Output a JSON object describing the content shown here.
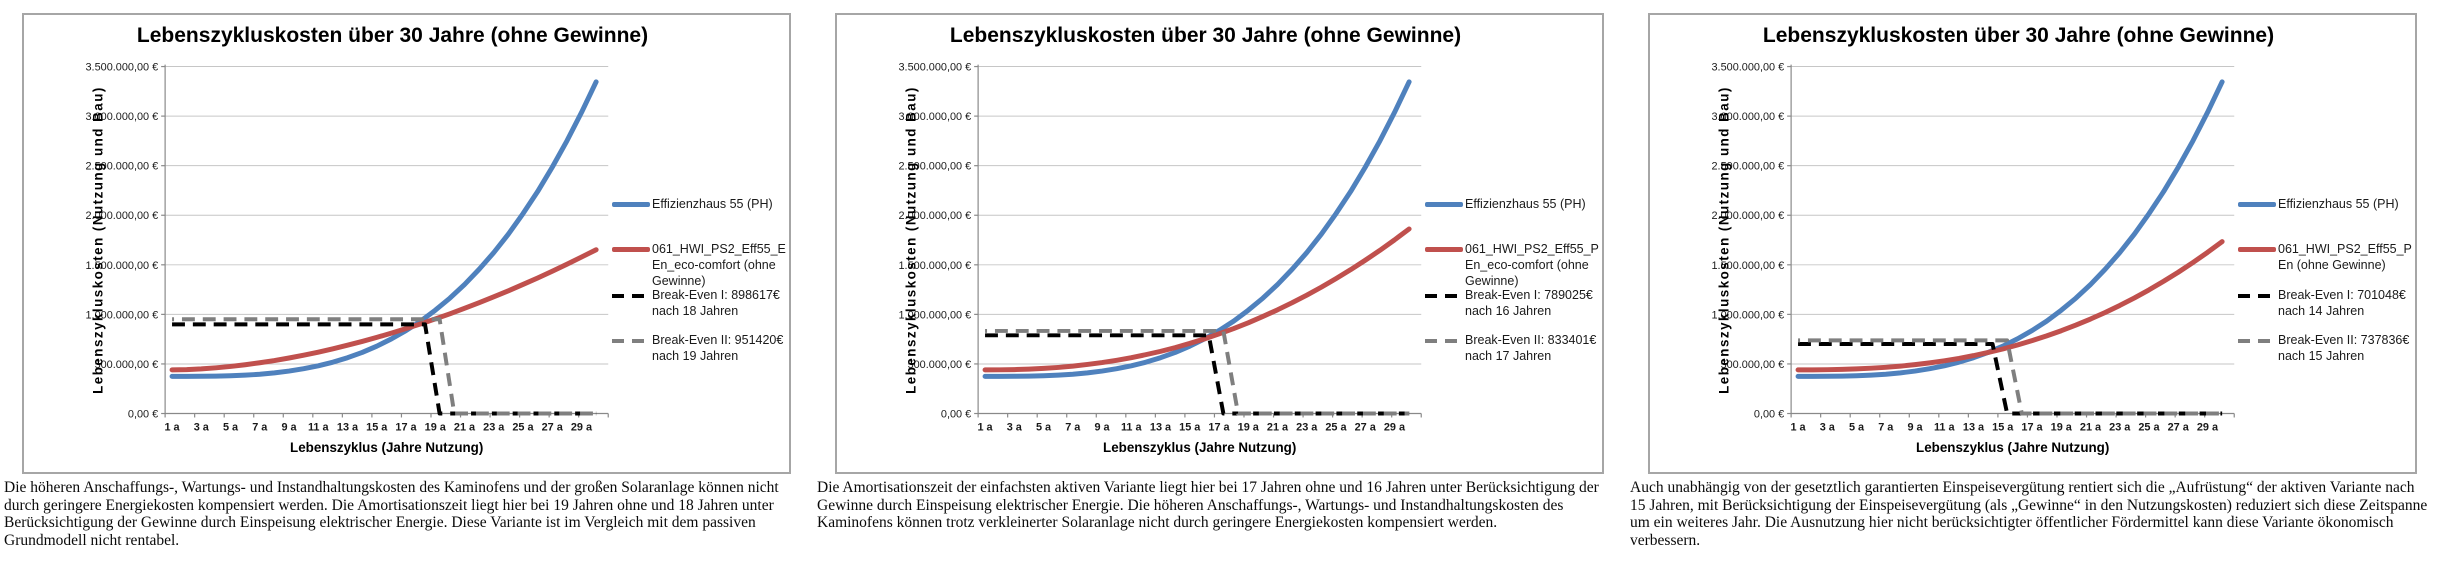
{
  "captions": [
    "Die höheren Anschaffungs-, Wartungs- und Instandhaltungskosten des Kaminofens und der großen Solaranlage können nicht durch geringere Energiekosten kompensiert werden. Die Amortisationszeit liegt hier bei 19 Jahren ohne und 18 Jahren unter Berücksichtigung der Gewinne durch Einspeisung elektrischer Energie. Diese Variante ist im Vergleich mit dem passiven Grundmodell nicht rentabel.",
    "Die Amortisationszeit der einfachsten aktiven Variante liegt hier bei 17 Jahren ohne und 16 Jahren unter Berücksichtigung der Gewinne durch Einspeisung elektrischer Energie. Die höheren Anschaffungs-, Wartungs- und Instandhaltungskosten des Kaminofens können trotz verkleinerter Solaranlage nicht durch geringere Energiekosten kompensiert werden.",
    "Auch unabhängig von der gesetztlich garantierten Einspeisevergütung rentiert sich die „Aufrüstung“ der aktiven Variante nach 15 Jahren, mit Berücksichtigung der Einspeisevergütung (als „Gewinne“ in den Nutzungskosten) reduziert sich diese Zeitspanne um ein weiteres Jahr. Die Ausnutzung hier nicht berücksichtigter öffentlicher Fördermittel kann diese Variante ökonomisch verbessern."
  ],
  "chart_data": [
    {
      "type": "line",
      "title": "Lebenszykluskosten über 30 Jahre (ohne Gewinne)",
      "xlabel": "Lebenszyklus (Jahre Nutzung)",
      "ylabel": "Lebenszykluskosten (Nutzung und Bau)",
      "ylim": [
        0,
        3500000
      ],
      "y_tick_labels": [
        "0,00 €",
        "500.000,00 €",
        "1.000.000,00 €",
        "1.500.000,00 €",
        "2.000.000,00 €",
        "2.500.000,00 €",
        "3.000.000,00 €",
        "3.500.000,00 €"
      ],
      "x_tick_labels": [
        "1 a",
        "3 a",
        "5 a",
        "7 a",
        "9 a",
        "11 a",
        "13 a",
        "15 a",
        "17 a",
        "19 a",
        "21 a",
        "23 a",
        "25 a",
        "27 a",
        "29 a"
      ],
      "x_years": 30,
      "legend_position": "right",
      "grid": true,
      "series": [
        {
          "id": "efficiency-house-line",
          "name": "Effizienzhaus 55 (PH)",
          "color": "#4F81BD",
          "width": 5,
          "values": [
            375000,
            375000,
            376000,
            377000,
            381000,
            387000,
            396000,
            410000,
            428000,
            452000,
            481000,
            518000,
            563000,
            616000,
            679000,
            753000,
            837000,
            932000,
            1042000,
            1164000,
            1301000,
            1455000,
            1623000,
            1810000,
            2016000,
            2239000,
            2484000,
            2750000,
            3036000,
            3346000
          ]
        },
        {
          "id": "variant-line",
          "name": "061_HWI_PS2_Eff55_EEn_eco-comfort (ohne Gewinne)",
          "color": "#C0504D",
          "width": 5,
          "values": [
            440000,
            443000,
            450000,
            461000,
            475000,
            492000,
            512000,
            534000,
            560000,
            588000,
            619000,
            653000,
            689000,
            727000,
            768000,
            811000,
            857000,
            904000,
            954000,
            1006000,
            1061000,
            1118000,
            1177000,
            1238000,
            1302000,
            1367000,
            1435000,
            1506000,
            1578000,
            1652000
          ]
        },
        {
          "id": "break-even-1-line",
          "name": "Break-Even I: 898617€ nach 18 Jahren",
          "color": "#000000",
          "width": 4,
          "dash": "13 8",
          "value": 898617,
          "drop_year": 18
        },
        {
          "id": "break-even-2-line",
          "name": "Break-Even II: 951420€ nach 19 Jahren",
          "color": "#7f7f7f",
          "width": 4,
          "dash": "13 8",
          "dashoffset": 11,
          "value": 951420,
          "drop_year": 19
        }
      ]
    },
    {
      "type": "line",
      "title": "Lebenszykluskosten über 30 Jahre (ohne Gewinne)",
      "xlabel": "Lebenszyklus (Jahre Nutzung)",
      "ylabel": "Lebenszykluskosten (Nutzung und Bau)",
      "ylim": [
        0,
        3500000
      ],
      "y_tick_labels": [
        "0,00 €",
        "500.000,00 €",
        "1.000.000,00 €",
        "1.500.000,00 €",
        "2.000.000,00 €",
        "2.500.000,00 €",
        "3.000.000,00 €",
        "3.500.000,00 €"
      ],
      "x_tick_labels": [
        "1 a",
        "3 a",
        "5 a",
        "7 a",
        "9 a",
        "11 a",
        "13 a",
        "15 a",
        "17 a",
        "19 a",
        "21 a",
        "23 a",
        "25 a",
        "27 a",
        "29 a"
      ],
      "x_years": 30,
      "legend_position": "right",
      "grid": true,
      "series": [
        {
          "id": "efficiency-house-line",
          "name": "Effizienzhaus 55 (PH)",
          "color": "#4F81BD",
          "width": 5,
          "values": [
            375000,
            375000,
            376000,
            377000,
            381000,
            387000,
            396000,
            410000,
            428000,
            452000,
            481000,
            518000,
            563000,
            616000,
            679000,
            753000,
            837000,
            932000,
            1042000,
            1164000,
            1301000,
            1455000,
            1623000,
            1810000,
            2016000,
            2239000,
            2484000,
            2750000,
            3036000,
            3346000
          ]
        },
        {
          "id": "variant-line",
          "name": "061_HWI_PS2_Eff55_PEn_eco-comfort (ohne Gewinne)",
          "color": "#C0504D",
          "width": 5,
          "values": [
            440000,
            441000,
            443000,
            448000,
            455000,
            465000,
            478000,
            495000,
            514000,
            537000,
            563000,
            594000,
            627000,
            665000,
            707000,
            753000,
            803000,
            857000,
            915000,
            979000,
            1046000,
            1118000,
            1194000,
            1275000,
            1361000,
            1451000,
            1546000,
            1646000,
            1751000,
            1862000
          ]
        },
        {
          "id": "break-even-1-line",
          "name": "Break-Even I: 789025€ nach 16 Jahren",
          "color": "#000000",
          "width": 4,
          "dash": "13 8",
          "value": 789025,
          "drop_year": 16
        },
        {
          "id": "break-even-2-line",
          "name": "Break-Even II: 833401€ nach 17 Jahren",
          "color": "#7f7f7f",
          "width": 4,
          "dash": "13 8",
          "dashoffset": 11,
          "value": 833401,
          "drop_year": 17
        }
      ]
    },
    {
      "type": "line",
      "title": "Lebenszykluskosten über 30 Jahre (ohne Gewinne)",
      "xlabel": "Lebenszyklus (Jahre Nutzung)",
      "ylabel": "Lebenszykluskosten (Nutzung und Bau)",
      "ylim": [
        0,
        3500000
      ],
      "y_tick_labels": [
        "0,00 €",
        "500.000,00 €",
        "1.000.000,00 €",
        "1.500.000,00 €",
        "2.000.000,00 €",
        "2.500.000,00 €",
        "3.000.000,00 €",
        "3.500.000,00 €"
      ],
      "x_tick_labels": [
        "1 a",
        "3 a",
        "5 a",
        "7 a",
        "9 a",
        "11 a",
        "13 a",
        "15 a",
        "17 a",
        "19 a",
        "21 a",
        "23 a",
        "25 a",
        "27 a",
        "29 a"
      ],
      "x_years": 30,
      "legend_position": "right",
      "grid": true,
      "series": [
        {
          "id": "efficiency-house-line",
          "name": "Effizienzhaus 55 (PH)",
          "color": "#4F81BD",
          "width": 5,
          "values": [
            375000,
            375000,
            376000,
            377000,
            381000,
            387000,
            396000,
            410000,
            428000,
            452000,
            481000,
            518000,
            563000,
            616000,
            679000,
            753000,
            837000,
            932000,
            1042000,
            1164000,
            1301000,
            1455000,
            1623000,
            1810000,
            2016000,
            2239000,
            2484000,
            2750000,
            3036000,
            3346000
          ]
        },
        {
          "id": "variant-line",
          "name": "061_HWI_PS2_Eff55_PEn (ohne Gewinne)",
          "color": "#C0504D",
          "width": 5,
          "values": [
            440000,
            440000,
            442000,
            445000,
            450000,
            457000,
            466000,
            478000,
            493000,
            511000,
            532000,
            556000,
            584000,
            616000,
            651000,
            691000,
            735000,
            783000,
            835000,
            892000,
            953000,
            1019000,
            1090000,
            1166000,
            1247000,
            1334000,
            1425000,
            1523000,
            1625000,
            1734000
          ]
        },
        {
          "id": "break-even-1-line",
          "name": "Break-Even I: 701048€ nach 14 Jahren",
          "color": "#000000",
          "width": 4,
          "dash": "13 8",
          "value": 701048,
          "drop_year": 14
        },
        {
          "id": "break-even-2-line",
          "name": "Break-Even II: 737836€ nach 15 Jahren",
          "color": "#7f7f7f",
          "width": 4,
          "dash": "13 8",
          "dashoffset": 11,
          "value": 737836,
          "drop_year": 15
        }
      ]
    }
  ]
}
